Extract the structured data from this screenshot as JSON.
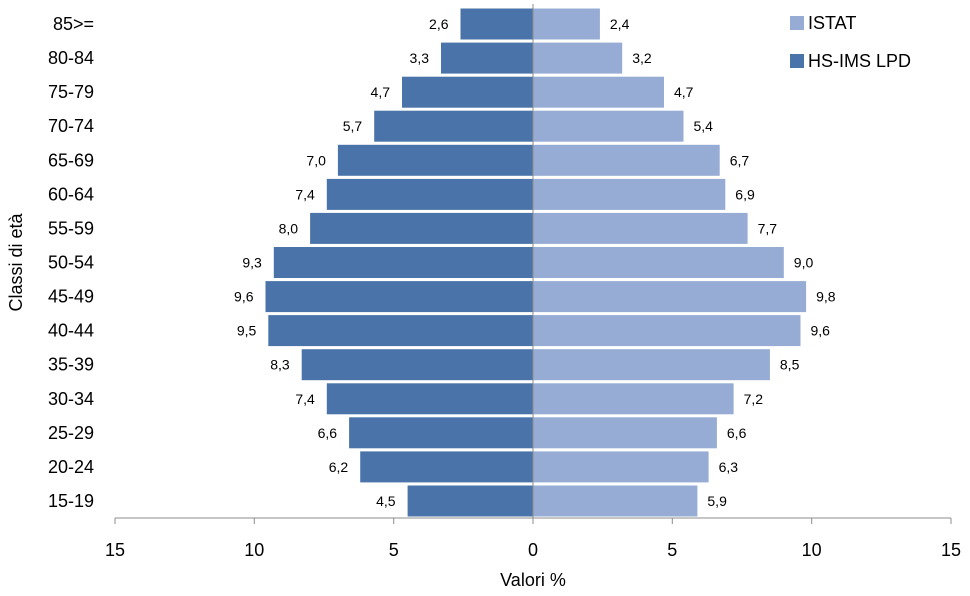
{
  "chart_data": {
    "type": "bar",
    "orientation": "horizontal-population-pyramid",
    "categories": [
      "85>=",
      "80-84",
      "75-79",
      "70-74",
      "65-69",
      "60-64",
      "55-59",
      "50-54",
      "45-49",
      "40-44",
      "35-39",
      "30-34",
      "25-29",
      "20-24",
      "15-19"
    ],
    "series": [
      {
        "name": "HS-IMS LPD",
        "side": "left",
        "color": "#4a74a9",
        "values": [
          2.6,
          3.3,
          4.7,
          5.7,
          7.0,
          7.4,
          8.0,
          9.3,
          9.6,
          9.5,
          8.3,
          7.4,
          6.6,
          6.2,
          4.5
        ],
        "labels": [
          "2,6",
          "3,3",
          "4,7",
          "5,7",
          "7,0",
          "7,4",
          "8,0",
          "9,3",
          "9,6",
          "9,5",
          "8,3",
          "7,4",
          "6,6",
          "6,2",
          "4,5"
        ]
      },
      {
        "name": "ISTAT",
        "side": "right",
        "color": "#96acd4",
        "values": [
          2.4,
          3.2,
          4.7,
          5.4,
          6.7,
          6.9,
          7.7,
          9.0,
          9.8,
          9.6,
          8.5,
          7.2,
          6.6,
          6.3,
          5.9
        ],
        "labels": [
          "2,4",
          "3,2",
          "4,7",
          "5,4",
          "6,7",
          "6,9",
          "7,7",
          "9,0",
          "9,8",
          "9,6",
          "8,5",
          "7,2",
          "6,6",
          "6,3",
          "5,9"
        ]
      }
    ],
    "xlabel": "Valori %",
    "ylabel": "Classi di età",
    "xlim": [
      -15,
      15
    ],
    "xticks": [
      -15,
      -10,
      -5,
      0,
      5,
      10,
      15
    ],
    "xtick_labels": [
      "15",
      "10",
      "5",
      "0",
      "5",
      "10",
      "15"
    ],
    "legend_position": "top-right",
    "grid": false
  }
}
